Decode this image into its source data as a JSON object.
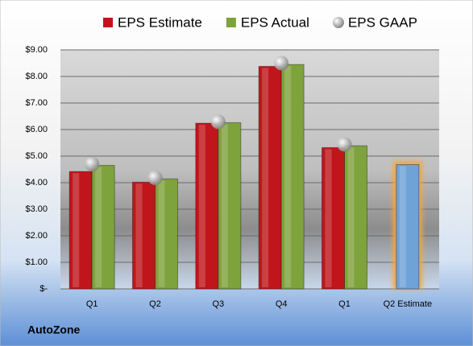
{
  "chart_data": {
    "type": "bar",
    "title": "AutoZone",
    "categories": [
      "Q1",
      "Q2",
      "Q3",
      "Q4",
      "Q1",
      "Q2 Estimate"
    ],
    "series": [
      {
        "name": "EPS Estimate",
        "color": "#c0161b",
        "values": [
          4.42,
          4.02,
          6.24,
          8.38,
          5.32,
          4.68
        ]
      },
      {
        "name": "EPS Actual",
        "color": "#7ea23c",
        "values": [
          4.65,
          4.14,
          6.26,
          8.45,
          5.39,
          null
        ]
      },
      {
        "name": "EPS GAAP",
        "color": "#a6a6a6",
        "type": "scatter",
        "values": [
          4.7,
          4.18,
          6.29,
          8.5,
          5.44,
          null
        ]
      }
    ],
    "highlight": {
      "category": 5,
      "color": "#6fa3d8",
      "glow": "#f5a442"
    },
    "ylim": [
      0,
      9
    ],
    "yticks": [
      {
        "value": 0,
        "label": "$-"
      },
      {
        "value": 1,
        "label": "$1.00"
      },
      {
        "value": 2,
        "label": "$2.00"
      },
      {
        "value": 3,
        "label": "$3.00"
      },
      {
        "value": 4,
        "label": "$4.00"
      },
      {
        "value": 5,
        "label": "$5.00"
      },
      {
        "value": 6,
        "label": "$6.00"
      },
      {
        "value": 7,
        "label": "$7.00"
      },
      {
        "value": 8,
        "label": "$8.00"
      },
      {
        "value": 9,
        "label": "$9.00"
      }
    ],
    "grid": true,
    "legend": "top"
  }
}
